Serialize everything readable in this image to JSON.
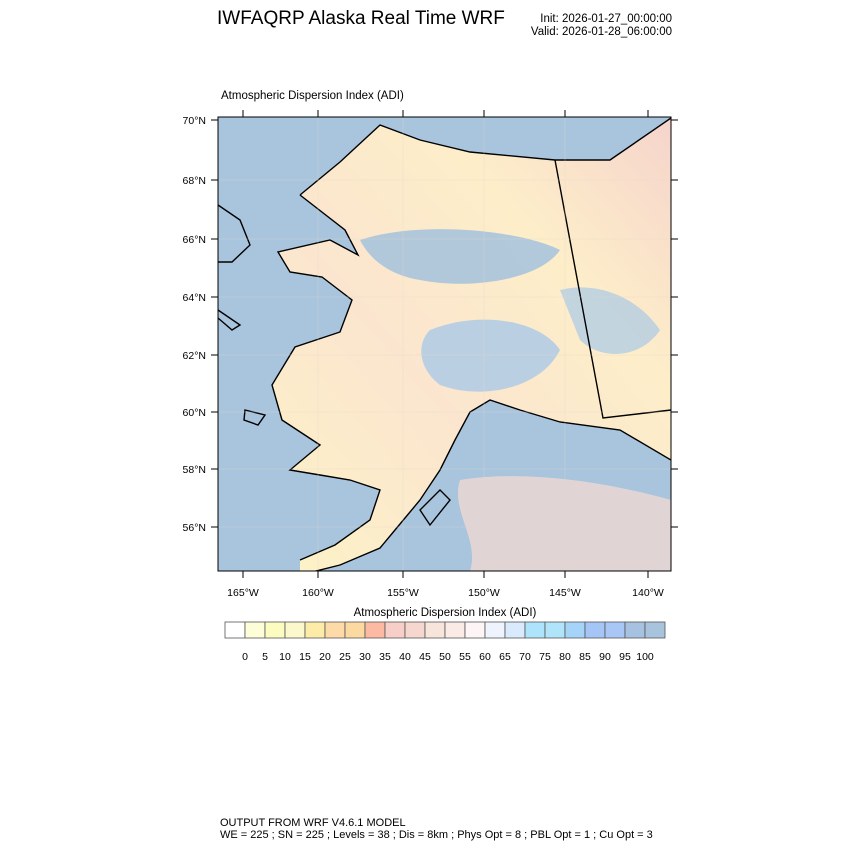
{
  "header": {
    "title": "IWFAQRP Alaska Real Time WRF",
    "init": "Init: 2026-01-27_00:00:00",
    "valid": "Valid: 2026-01-28_06:00:00"
  },
  "map": {
    "field_title": "Atmospheric Dispersion Index   (ADI)",
    "lat_labels": [
      "70°N",
      "68°N",
      "66°N",
      "64°N",
      "62°N",
      "60°N",
      "58°N",
      "56°N"
    ],
    "lon_labels": [
      "165°W",
      "160°W",
      "155°W",
      "150°W",
      "145°W",
      "140°W"
    ],
    "ocean_color": "#a9c4dd"
  },
  "colorbar": {
    "title": "Atmospheric Dispersion Index  (ADI)",
    "labels": [
      "0",
      "5",
      "10",
      "15",
      "20",
      "25",
      "30",
      "35",
      "40",
      "45",
      "50",
      "55",
      "60",
      "65",
      "70",
      "75",
      "80",
      "85",
      "90",
      "95",
      "100"
    ],
    "colors": [
      "#ffffff",
      "#fdfdd8",
      "#fcfcc0",
      "#fbf8cc",
      "#fdeba8",
      "#fddaa8",
      "#fdd9a2",
      "#fcbaa2",
      "#f7cfc8",
      "#f6d7cf",
      "#f7e4da",
      "#fbebe6",
      "#fdf5f5",
      "#eef3fd",
      "#d9eafc",
      "#aee4fb",
      "#b0e4fa",
      "#a6d4f8",
      "#a6c5f7",
      "#a8c7f6",
      "#a7c1e0",
      "#a8c3dc"
    ]
  },
  "footer": {
    "line1": "OUTPUT FROM WRF V4.6.1 MODEL",
    "line2": "WE = 225 ; SN = 225 ; Levels = 38 ; Dis = 8km ; Phys Opt = 8 ; PBL Opt = 1 ; Cu Opt = 3"
  }
}
